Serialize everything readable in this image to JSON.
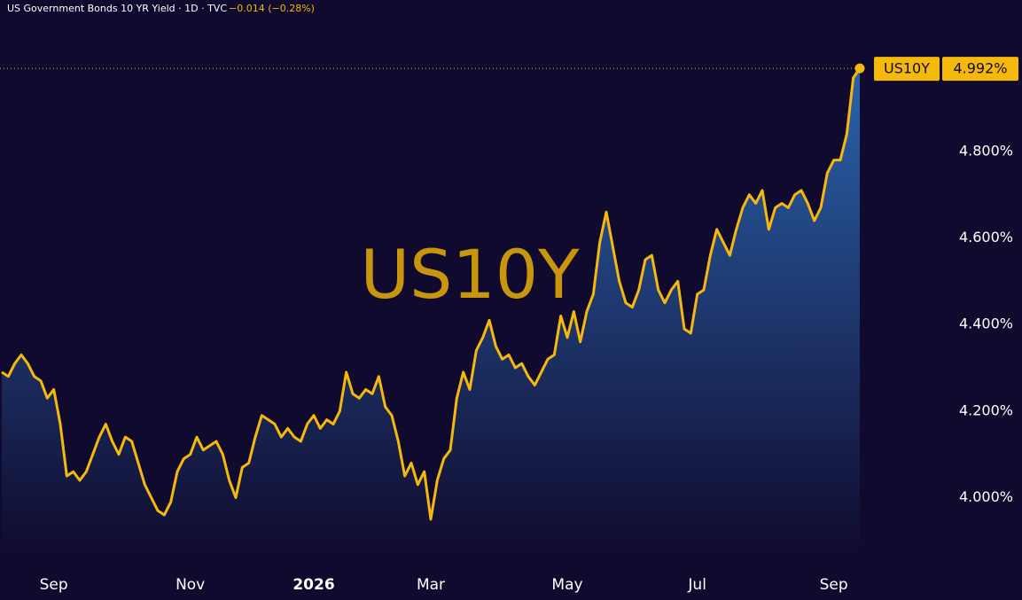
{
  "chart_data": {
    "type": "line",
    "title": "US Government Bonds 10 YR Yield · 1D · TVC",
    "change": "−0.014 (−0.28%)",
    "categories": [
      null,
      null,
      null,
      null,
      null,
      null,
      null,
      null,
      "Sep",
      null,
      null,
      null,
      null,
      null,
      null,
      null,
      null,
      null,
      null,
      null,
      null,
      null,
      null,
      null,
      null,
      null,
      null,
      null,
      null,
      "Nov",
      null,
      null,
      null,
      null,
      null,
      null,
      null,
      null,
      null,
      null,
      null,
      null,
      null,
      null,
      null,
      null,
      null,
      null,
      "2026",
      null,
      null,
      null,
      null,
      null,
      null,
      null,
      null,
      null,
      null,
      null,
      null,
      null,
      null,
      null,
      null,
      null,
      "Mar",
      null,
      null,
      null,
      null,
      null,
      null,
      null,
      null,
      null,
      null,
      null,
      null,
      null,
      null,
      null,
      null,
      null,
      null,
      null,
      null,
      "May",
      null,
      null,
      null,
      null,
      null,
      null,
      null,
      null,
      null,
      null,
      null,
      null,
      null,
      null,
      null,
      null,
      null,
      null,
      null,
      "Jul",
      null,
      null,
      null,
      null,
      null,
      null,
      null,
      null,
      null,
      null,
      null,
      null,
      null,
      null,
      null,
      null,
      null,
      null,
      null,
      null,
      "Sep",
      null,
      null,
      null,
      null
    ],
    "series": [
      {
        "name": "US10Y",
        "color": "#f5b80c",
        "last_label": "4.992%",
        "values": [
          4.29,
          4.28,
          4.31,
          4.33,
          4.31,
          4.28,
          4.27,
          4.23,
          4.25,
          4.17,
          4.05,
          4.06,
          4.04,
          4.06,
          4.1,
          4.14,
          4.17,
          4.13,
          4.1,
          4.14,
          4.13,
          4.08,
          4.03,
          4.0,
          3.97,
          3.96,
          3.99,
          4.06,
          4.09,
          4.1,
          4.14,
          4.11,
          4.12,
          4.13,
          4.1,
          4.04,
          4.0,
          4.07,
          4.08,
          4.14,
          4.19,
          4.18,
          4.17,
          4.14,
          4.16,
          4.14,
          4.13,
          4.17,
          4.19,
          4.16,
          4.18,
          4.17,
          4.2,
          4.29,
          4.24,
          4.23,
          4.25,
          4.24,
          4.28,
          4.21,
          4.19,
          4.13,
          4.05,
          4.08,
          4.03,
          4.06,
          3.95,
          4.04,
          4.09,
          4.11,
          4.23,
          4.29,
          4.25,
          4.34,
          4.37,
          4.41,
          4.35,
          4.32,
          4.33,
          4.3,
          4.31,
          4.28,
          4.26,
          4.29,
          4.32,
          4.33,
          4.42,
          4.37,
          4.43,
          4.36,
          4.43,
          4.47,
          4.59,
          4.66,
          4.58,
          4.5,
          4.45,
          4.44,
          4.48,
          4.55,
          4.56,
          4.48,
          4.45,
          4.48,
          4.5,
          4.39,
          4.38,
          4.47,
          4.48,
          4.56,
          4.62,
          4.59,
          4.56,
          4.62,
          4.67,
          4.7,
          4.68,
          4.71,
          4.62,
          4.67,
          4.68,
          4.67,
          4.7,
          4.71,
          4.68,
          4.64,
          4.67,
          4.75,
          4.78,
          4.78,
          4.84,
          4.97,
          4.992
        ]
      }
    ],
    "ylim": [
      3.87,
      5.15
    ],
    "yticks": [
      {
        "value": 4,
        "label": "4.000%"
      },
      {
        "value": 4.2,
        "label": "4.200%"
      },
      {
        "value": 4.4,
        "label": "4.400%"
      },
      {
        "value": 4.6,
        "label": "4.600%"
      },
      {
        "value": 4.8,
        "label": "4.800%"
      }
    ]
  }
}
